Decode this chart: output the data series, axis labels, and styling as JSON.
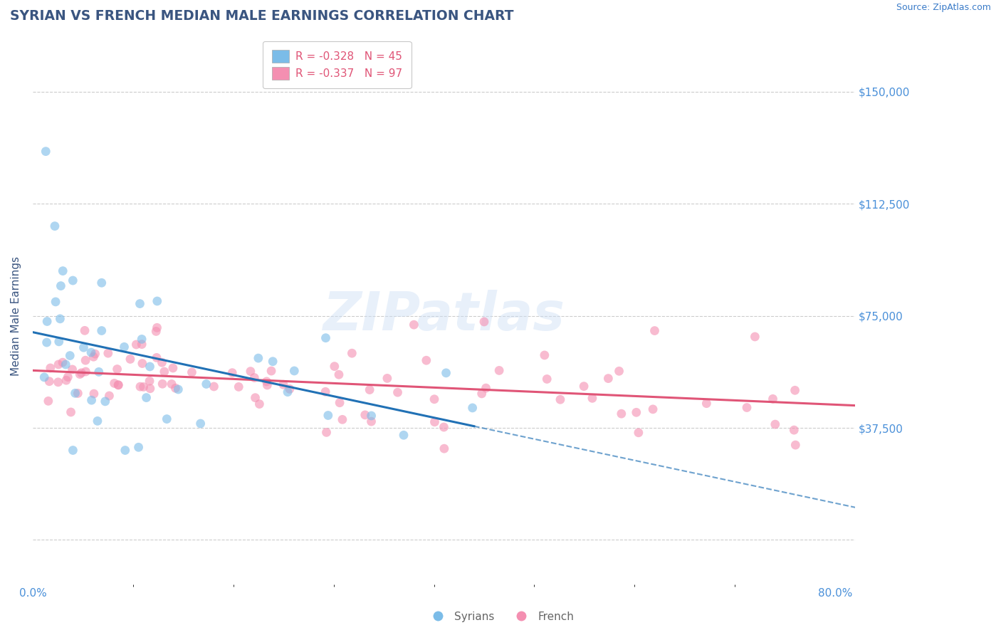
{
  "title": "SYRIAN VS FRENCH MEDIAN MALE EARNINGS CORRELATION CHART",
  "source": "Source: ZipAtlas.com",
  "ylabel": "Median Male Earnings",
  "xlim": [
    0.0,
    0.82
  ],
  "ylim": [
    -15000,
    165000
  ],
  "ytick_vals": [
    0,
    37500,
    75000,
    112500,
    150000
  ],
  "ytick_right_labels": [
    "$37,500",
    "$75,000",
    "$112,500",
    "$150,000"
  ],
  "ytick_right_vals": [
    37500,
    75000,
    112500,
    150000
  ],
  "xtick_labels": [
    "0.0%",
    "80.0%"
  ],
  "xtick_positions": [
    0.0,
    0.8
  ],
  "syrian_R": -0.328,
  "syrian_N": 45,
  "french_R": -0.337,
  "french_N": 97,
  "blue_scatter_color": "#7bbce8",
  "pink_scatter_color": "#f48fb1",
  "blue_line_color": "#2171b5",
  "pink_line_color": "#e05577",
  "title_color": "#3a5580",
  "source_color": "#3a7bc8",
  "ylabel_color": "#3a5580",
  "tick_label_color": "#4a90d9",
  "legend_text_color": "#e05577",
  "watermark_color": "#ccdff5",
  "background_color": "#ffffff",
  "grid_color": "#cccccc",
  "watermark_text": "ZIPatlas"
}
